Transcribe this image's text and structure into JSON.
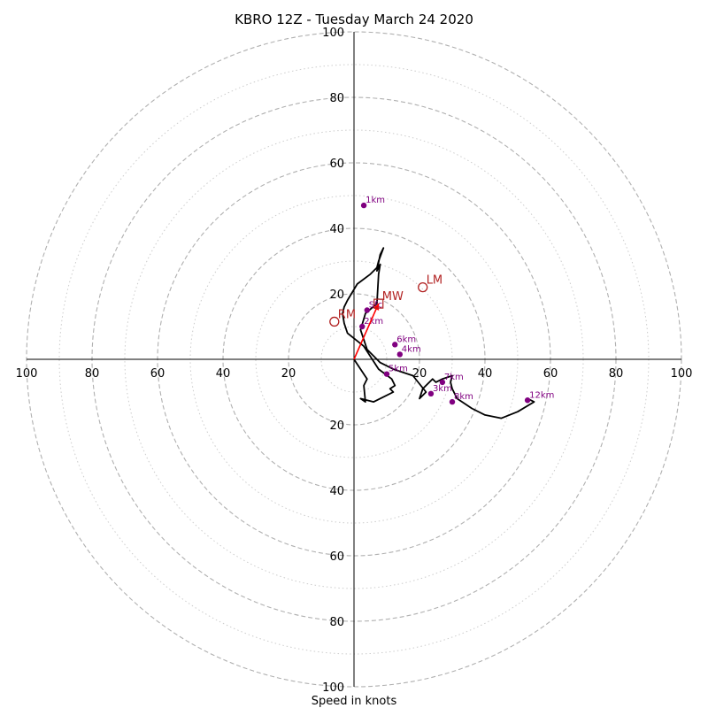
{
  "chart_data": {
    "type": "scatter",
    "subtype": "hodograph",
    "title": "KBRO 12Z - Tuesday March 24 2020",
    "xlabel": "Speed in knots",
    "ylabel": "",
    "xlim": [
      -100,
      100
    ],
    "ylim": [
      -100,
      100
    ],
    "rings_dashed": [
      20,
      40,
      60,
      80,
      100
    ],
    "rings_dotted": [
      10,
      30,
      50,
      70,
      90
    ],
    "tick_values": [
      20,
      40,
      60,
      80,
      100
    ],
    "grid": true,
    "colors": {
      "trace": "#000000",
      "height_markers": "#800080",
      "storm_motion": "#b22222",
      "shear_vector": "#ff0000",
      "rings": "#b0b0b0"
    },
    "hodograph_trace": {
      "u": [
        0,
        2,
        4,
        3,
        3.5,
        2,
        6,
        10,
        12,
        11,
        12.5,
        11.5,
        7.5,
        3,
        -2,
        -3,
        -3.5,
        -3,
        -2,
        1,
        5,
        7,
        7.5,
        9,
        8,
        7,
        8,
        7.5,
        7,
        3.5,
        2,
        4,
        8,
        12,
        18,
        22,
        20,
        21,
        24,
        25,
        27,
        30,
        29.5,
        30,
        31.5,
        36,
        40,
        45,
        50,
        55,
        53
      ],
      "v": [
        0,
        3,
        6,
        8,
        13,
        12,
        13,
        11,
        10,
        9,
        8,
        6,
        3,
        -4,
        -8,
        -11,
        -14,
        -16,
        -18,
        -23,
        -26,
        -28,
        -30,
        -34,
        -32,
        -27,
        -29,
        -26,
        -17,
        -14,
        -9,
        -3,
        1,
        3,
        5,
        10,
        12,
        9,
        6,
        7,
        6,
        5,
        7,
        9,
        12,
        15,
        17,
        18,
        16,
        13,
        12
      ],
      "color": "#000000"
    },
    "height_markers": [
      {
        "label": "Sfc",
        "u": 4,
        "v": -15
      },
      {
        "label": "1km",
        "u": 3,
        "v": -47
      },
      {
        "label": "2km",
        "u": 2.5,
        "v": -10
      },
      {
        "label": "3km",
        "u": 23.5,
        "v": 10.5
      },
      {
        "label": "4km",
        "u": 14,
        "v": -1.5
      },
      {
        "label": "5km",
        "u": 10,
        "v": 4.5
      },
      {
        "label": "6km",
        "u": 12.5,
        "v": -4.5
      },
      {
        "label": "7km",
        "u": 27,
        "v": 7
      },
      {
        "label": "8km",
        "u": 30,
        "v": 13
      },
      {
        "label": "12km",
        "u": 53,
        "v": 12.5
      }
    ],
    "storm_motion": [
      {
        "label": "RM",
        "u": -6,
        "v": -11.5
      },
      {
        "label": "LM",
        "u": 21,
        "v": -22
      },
      {
        "label": "MW",
        "u": 7.5,
        "v": -17
      }
    ],
    "shear_vector": {
      "u": 7.5,
      "v": -17
    }
  }
}
